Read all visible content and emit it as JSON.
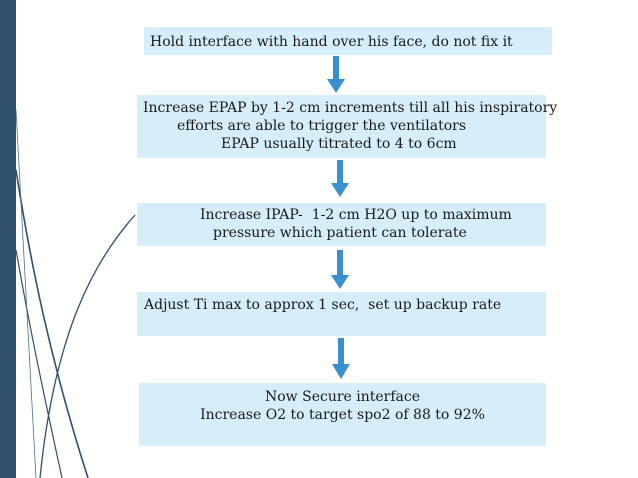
{
  "flow": {
    "steps": [
      {
        "lines": [
          "Hold interface with hand over his face, do not fix it"
        ]
      },
      {
        "lines": [
          "Increase EPAP by 1-2 cm increments till all his inspiratory",
          "efforts are able to trigger the ventilators",
          "EPAP usually titrated to 4 to 6cm"
        ]
      },
      {
        "lines": [
          "Increase IPAP-  1-2 cm H2O up to maximum",
          "pressure which patient can tolerate"
        ]
      },
      {
        "lines": [
          "Adjust Ti max to approx 1 sec,  set up backup rate"
        ]
      },
      {
        "lines": [
          "Now Secure interface",
          "Increase O2 to target spo2 of 88 to 92%"
        ]
      }
    ]
  },
  "colors": {
    "box_fill": "#d6eefa",
    "arrow": "#3a8fd0",
    "sidebar": "#2f4f6b",
    "curves": "#2f4f6b"
  }
}
